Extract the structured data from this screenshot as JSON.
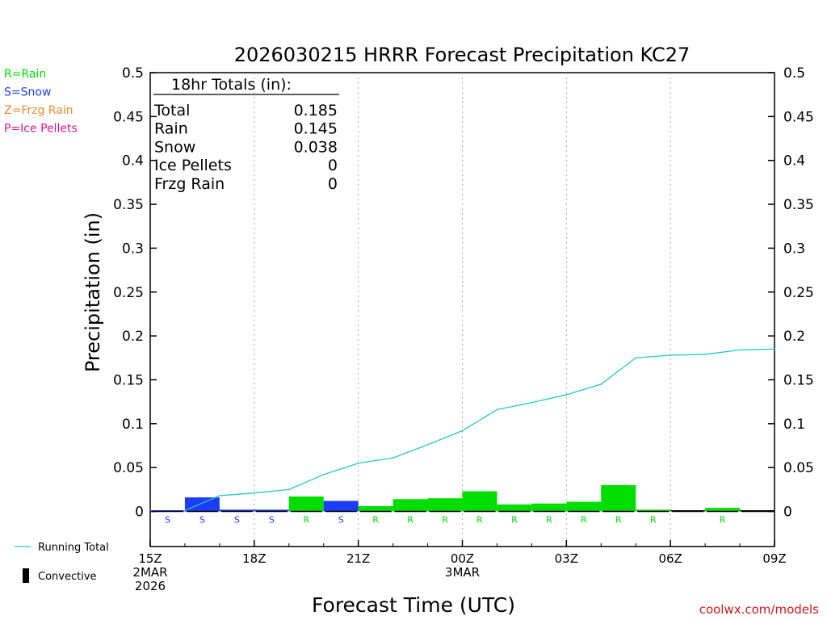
{
  "chart_data": {
    "type": "bar",
    "title": "2026030215 HRRR Forecast Precipitation KC27",
    "xlabel": "Forecast Time (UTC)",
    "ylabel": "Precipitation (in)",
    "ylim": [
      -0.04,
      0.5
    ],
    "xlim": [
      0,
      18
    ],
    "yticks": [
      0,
      0.05,
      0.1,
      0.15,
      0.2,
      0.25,
      0.3,
      0.35,
      0.4,
      0.45,
      0.5
    ],
    "ytick_labels": [
      "0",
      "0.05",
      "0.1",
      "0.15",
      "0.2",
      "0.25",
      "0.3",
      "0.35",
      "0.4",
      "0.45",
      "0.5"
    ],
    "grid": "vertical dotted at labeled hours",
    "xticks": [
      {
        "hour": 0,
        "lines": [
          "15Z",
          "2MAR",
          "2026"
        ]
      },
      {
        "hour": 3,
        "lines": [
          "18Z"
        ]
      },
      {
        "hour": 6,
        "lines": [
          "21Z"
        ]
      },
      {
        "hour": 9,
        "lines": [
          "00Z",
          "3MAR"
        ]
      },
      {
        "hour": 12,
        "lines": [
          "03Z"
        ]
      },
      {
        "hour": 15,
        "lines": [
          "06Z"
        ]
      },
      {
        "hour": 18,
        "lines": [
          "09Z"
        ]
      }
    ],
    "hours": [
      1,
      2,
      3,
      4,
      5,
      6,
      7,
      8,
      9,
      10,
      11,
      12,
      13,
      14,
      15,
      16,
      17,
      18
    ],
    "values": [
      0.001,
      0.016,
      0.002,
      0.002,
      0.017,
      0.012,
      0.006,
      0.014,
      0.015,
      0.023,
      0.008,
      0.009,
      0.011,
      0.03,
      0.002,
      0.0005,
      0.004,
      0.0
    ],
    "types": [
      "S",
      "S",
      "S",
      "S",
      "R",
      "S",
      "R",
      "R",
      "R",
      "R",
      "R",
      "R",
      "R",
      "R",
      "R",
      "",
      "R",
      ""
    ],
    "series": [
      {
        "name": "Running Total",
        "color": "#22c8c8",
        "x": [
          1,
          2,
          3,
          4,
          5,
          6,
          7,
          8,
          9,
          10,
          11,
          12,
          13,
          14,
          15,
          16,
          17,
          18
        ],
        "values": [
          0.001,
          0.018,
          0.021,
          0.025,
          0.042,
          0.055,
          0.061,
          0.076,
          0.092,
          0.116,
          0.124,
          0.133,
          0.145,
          0.175,
          0.178,
          0.179,
          0.184,
          0.185
        ]
      }
    ],
    "type_colors": {
      "R": "#00dd00",
      "S": "#1f3cf5",
      "Z": "#f0882c",
      "P": "#e0128c"
    },
    "legend_types": [
      {
        "code": "R",
        "label": "R=Rain",
        "color": "#00dd00"
      },
      {
        "code": "S",
        "label": "S=Snow",
        "color": "#1f3cf5"
      },
      {
        "code": "Z",
        "label": "Z=Frzg Rain",
        "color": "#f0882c"
      },
      {
        "code": "P",
        "label": "P=Ice Pellets",
        "color": "#e0128c"
      }
    ],
    "legend_series": [
      {
        "label": "Running Total",
        "color": "#22c8c8"
      },
      {
        "label": "Convective",
        "color": "#000000"
      }
    ],
    "totals": {
      "heading": "18hr Totals (in):",
      "rows": [
        {
          "label": "Total",
          "value": "0.185"
        },
        {
          "label": "Rain",
          "value": "0.145"
        },
        {
          "label": "Snow",
          "value": "0.038"
        },
        {
          "label": "Ice Pellets",
          "value": "0"
        },
        {
          "label": "Frzg Rain",
          "value": "0"
        }
      ]
    },
    "credit": "coolwx.com/models"
  }
}
